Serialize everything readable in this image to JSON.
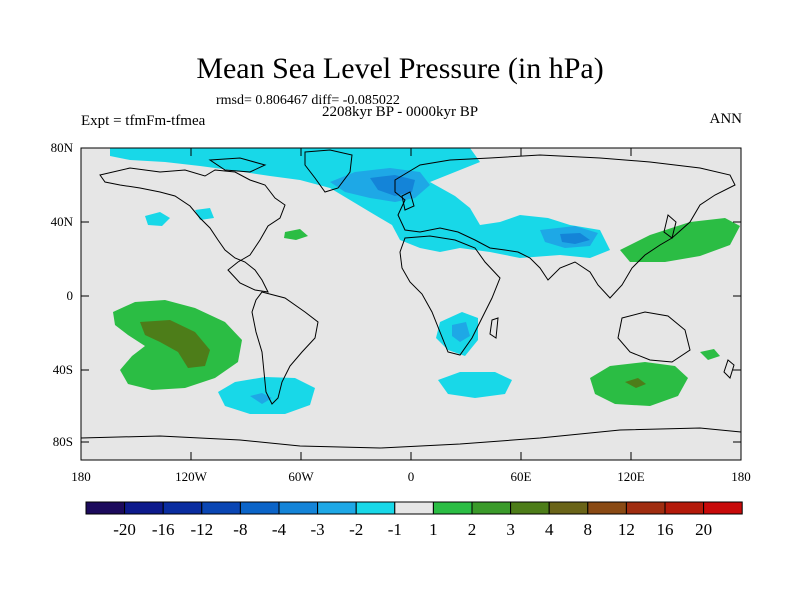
{
  "title": "Mean Sea Level Pressure (in hPa)",
  "stats": "rmsd= 0.806467 diff= -0.085022",
  "period": "2208kyr BP - 0000kyr BP",
  "experiment": "Expt = tfmFm-tfmea",
  "season": "ANN",
  "lat_labels": [
    "80N",
    "40N",
    "0",
    "40S",
    "80S"
  ],
  "lon_labels": [
    "180",
    "120W",
    "60W",
    "0",
    "60E",
    "120E",
    "180"
  ],
  "colorbar": {
    "labels": [
      "-20",
      "-16",
      "-12",
      "-8",
      "-4",
      "-3",
      "-2",
      "-1",
      "1",
      "2",
      "3",
      "4",
      "8",
      "12",
      "16",
      "20"
    ],
    "colors": [
      "#1c0a5c",
      "#0d1a8c",
      "#0a2da0",
      "#0a46b4",
      "#0b64c8",
      "#1484d8",
      "#1ea8e6",
      "#18d8e8",
      "#e6e6e6",
      "#2bbd44",
      "#3a9a2a",
      "#4d7d19",
      "#6a6418",
      "#8a4a14",
      "#a02d10",
      "#b41a0a",
      "#c80a0a"
    ]
  },
  "map": {
    "background_color": "#e6e6e6",
    "regions": [
      {
        "name": "arctic-negative",
        "class": "-2 to -1"
      },
      {
        "name": "north-atlantic-eurasia-low",
        "class": "-4 to -2"
      },
      {
        "name": "tibet-low",
        "class": "-4 to -3"
      },
      {
        "name": "south-africa-low",
        "class": "-3 to -2"
      },
      {
        "name": "south-america-low",
        "class": "-2 to -1"
      },
      {
        "name": "south-atlantic-low",
        "class": "-2 to -1"
      },
      {
        "name": "south-pacific-high",
        "class": "1 to 3"
      },
      {
        "name": "north-pacific-high",
        "class": "1 to 2"
      },
      {
        "name": "indian-ocean-high",
        "class": "1 to 3"
      },
      {
        "name": "pacific-small-high",
        "class": "1 to 2"
      }
    ]
  }
}
